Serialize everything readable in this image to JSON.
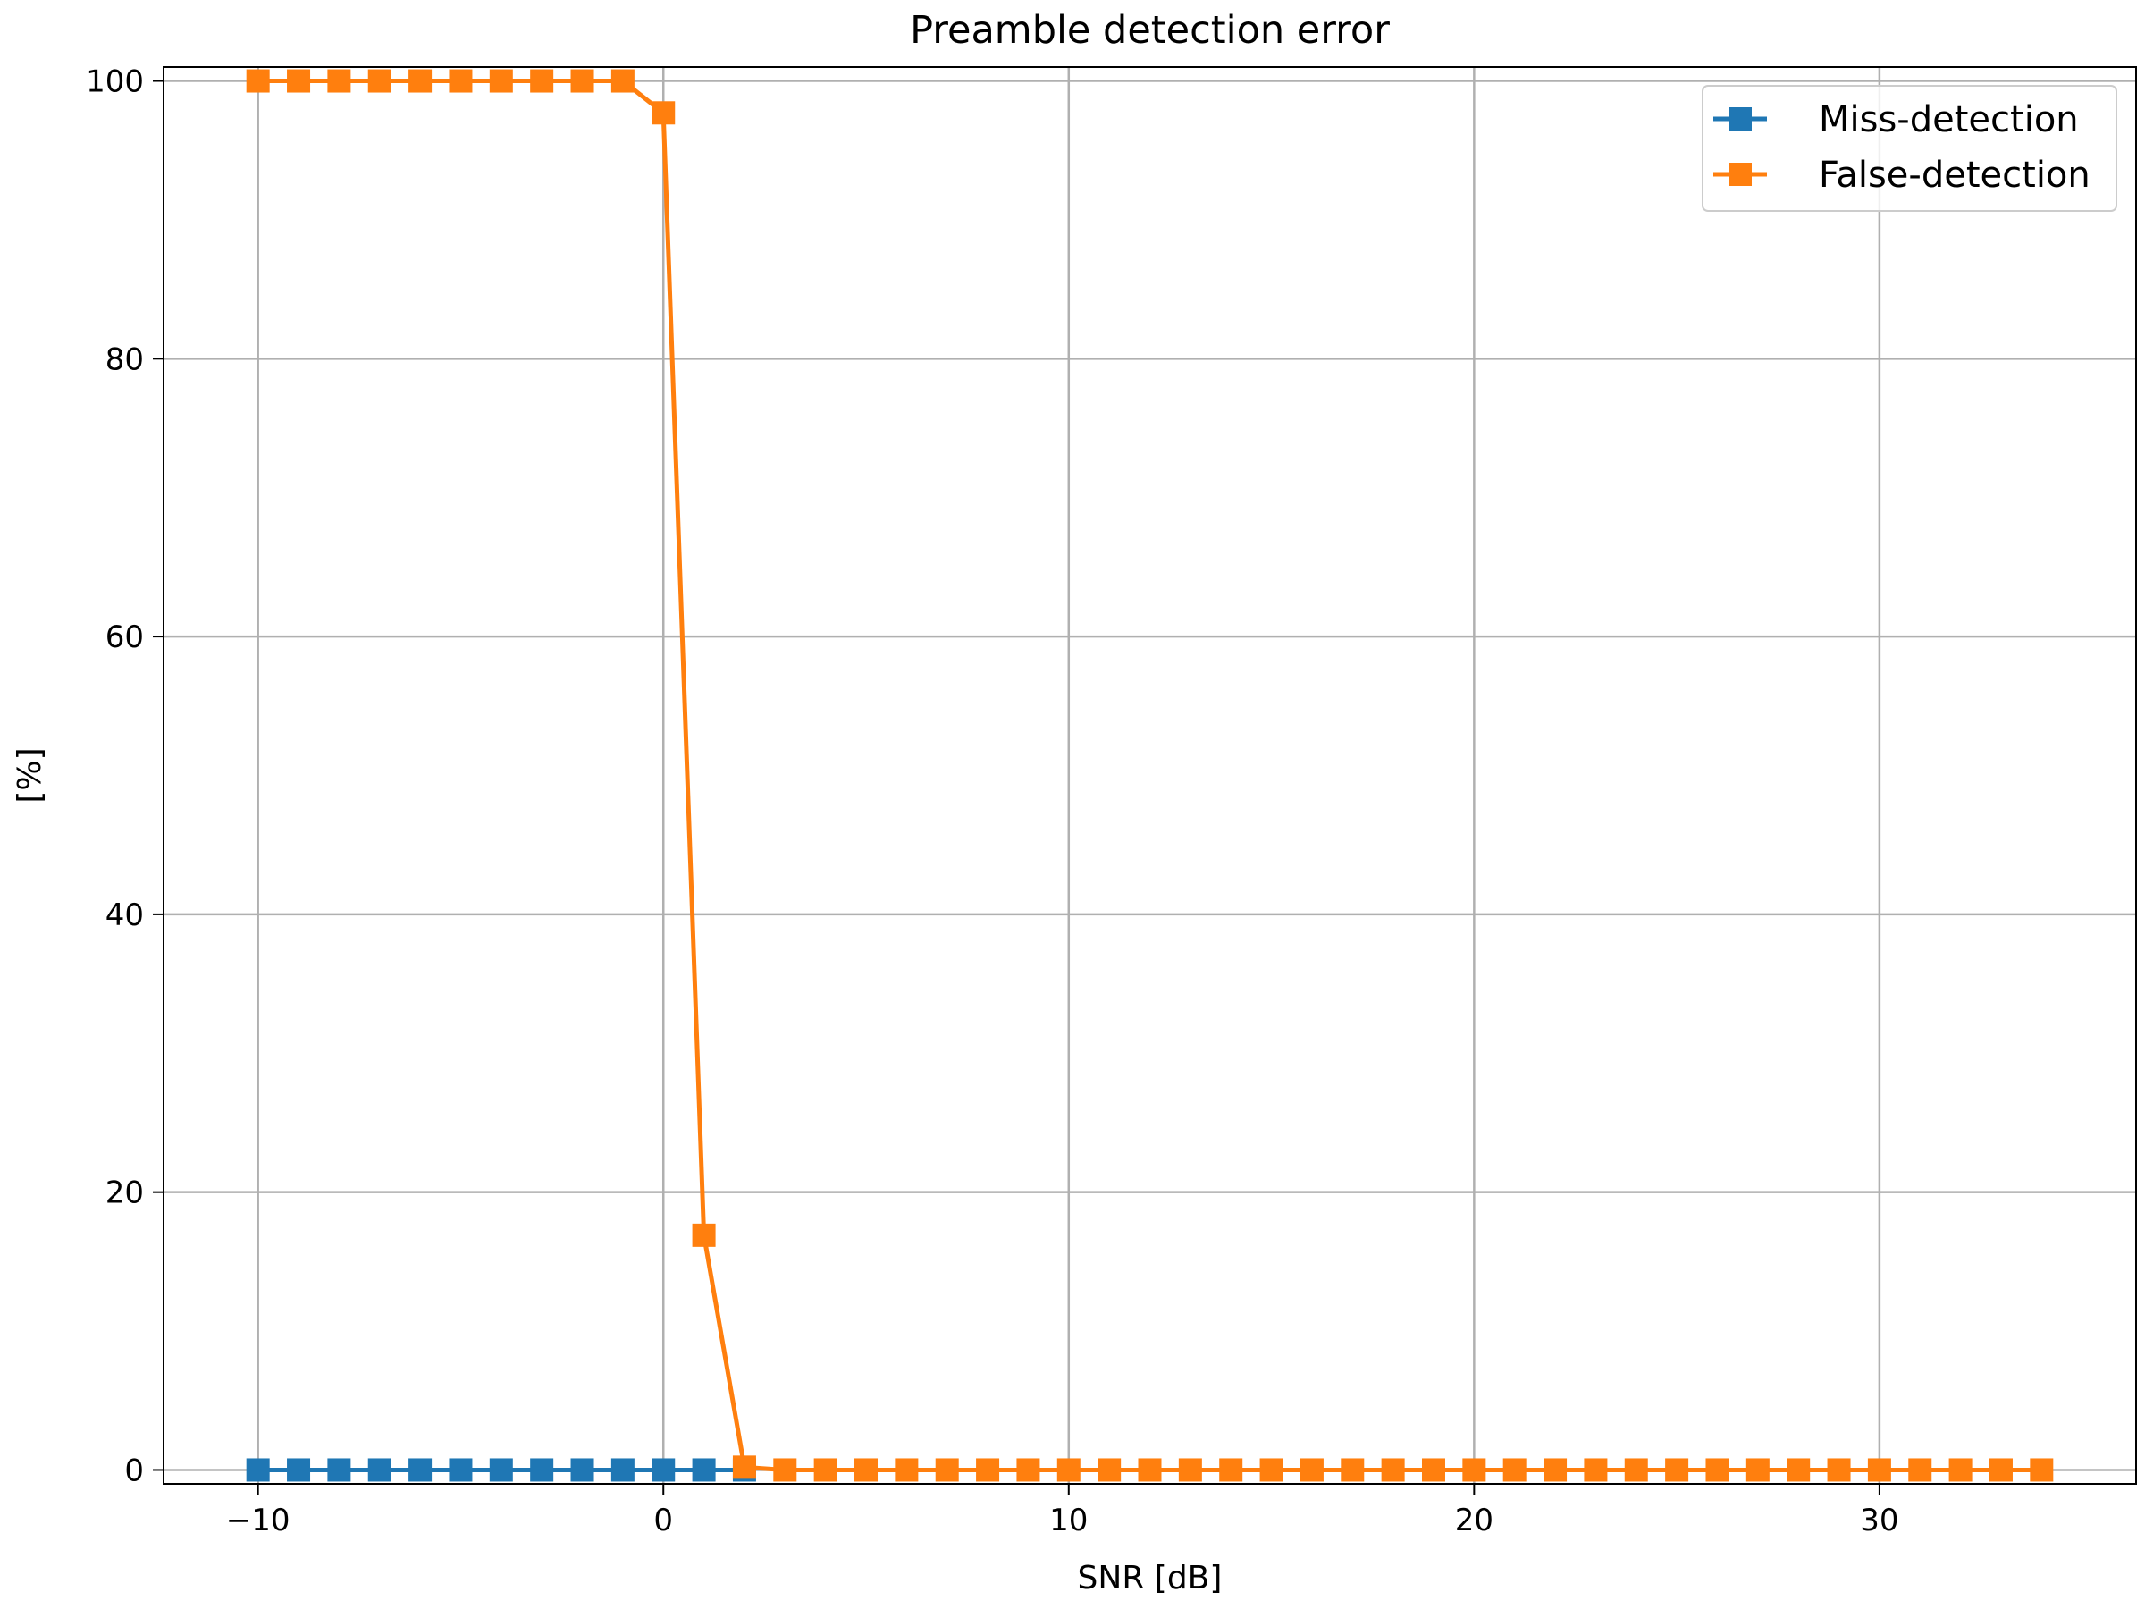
{
  "chart_data": {
    "type": "line",
    "title": "Preamble detection error",
    "xlabel": "SNR [dB]",
    "ylabel": "[%]",
    "xlim": [
      -12.33,
      36.33
    ],
    "ylim": [
      -1,
      101
    ],
    "xticks": [
      -10,
      0,
      10,
      20,
      30
    ],
    "xtick_labels": [
      "−10",
      "0",
      "10",
      "20",
      "30"
    ],
    "yticks": [
      0,
      20,
      40,
      60,
      80,
      100
    ],
    "ytick_labels": [
      "0",
      "20",
      "40",
      "60",
      "80",
      "100"
    ],
    "grid": true,
    "legend_position": "top-right",
    "series": [
      {
        "name": "Miss-detection",
        "color": "#1f77b4",
        "marker": "square",
        "x": [
          -10,
          -9,
          -8,
          -7,
          -6,
          -5,
          -4,
          -3,
          -2,
          -1,
          0,
          1,
          2
        ],
        "y": [
          0,
          0,
          0,
          0,
          0,
          0,
          0,
          0,
          0,
          0,
          0,
          0,
          0
        ]
      },
      {
        "name": "False-detection",
        "color": "#ff7f0e",
        "marker": "square",
        "x": [
          -10,
          -9,
          -8,
          -7,
          -6,
          -5,
          -4,
          -3,
          -2,
          -1,
          0,
          1,
          2,
          3,
          4,
          5,
          6,
          7,
          8,
          9,
          10,
          11,
          12,
          13,
          14,
          15,
          16,
          17,
          18,
          19,
          20,
          21,
          22,
          23,
          24,
          25,
          26,
          27,
          28,
          29,
          30,
          31,
          32,
          33,
          34
        ],
        "y": [
          100,
          100,
          100,
          100,
          100,
          100,
          100,
          100,
          100,
          100,
          97.7,
          16.9,
          0.2,
          0,
          0,
          0,
          0,
          0,
          0,
          0,
          0,
          0,
          0,
          0,
          0,
          0,
          0,
          0,
          0,
          0,
          0,
          0,
          0,
          0,
          0,
          0,
          0,
          0,
          0,
          0,
          0,
          0,
          0,
          0,
          0
        ]
      }
    ]
  }
}
